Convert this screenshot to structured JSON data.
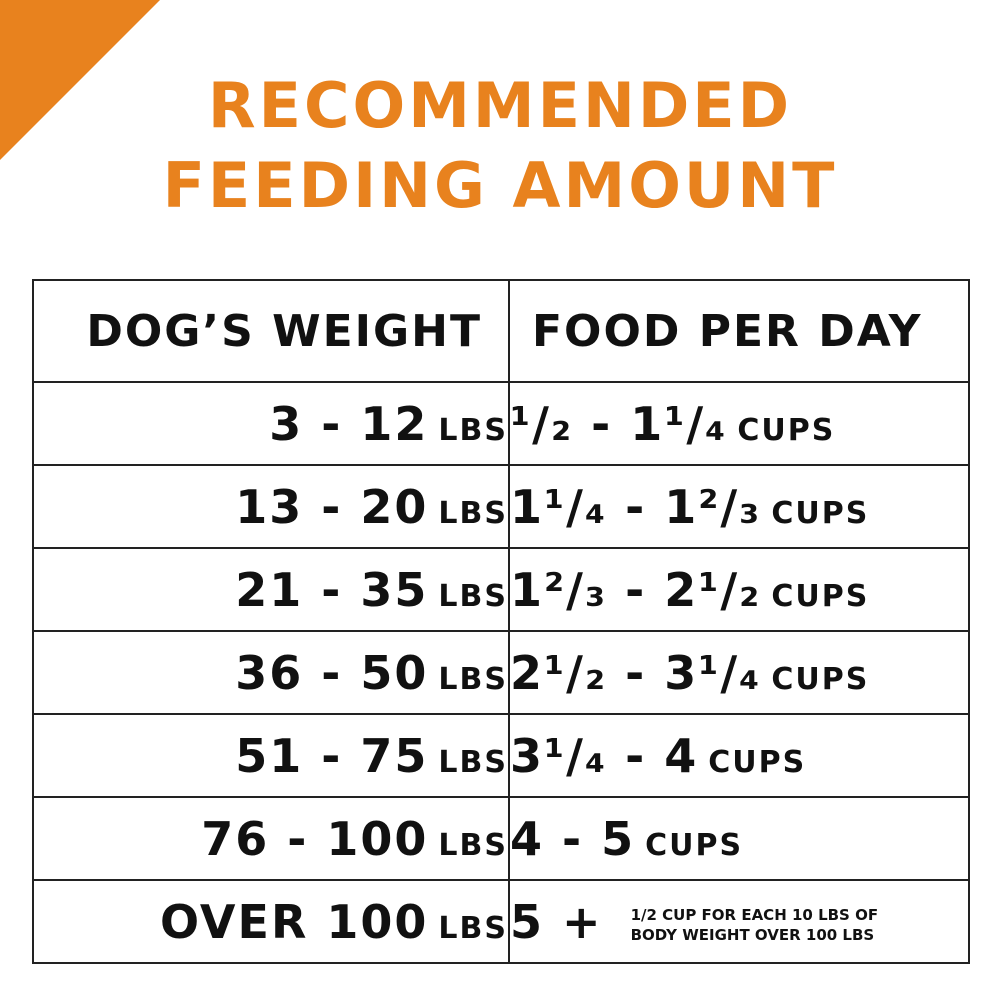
{
  "colors": {
    "accent": "#e8821e",
    "border": "#222222",
    "text": "#111111"
  },
  "title": {
    "line1": "RECOMMENDED",
    "line2": "FEEDING AMOUNT"
  },
  "table": {
    "headers": {
      "weight": "DOG’S WEIGHT",
      "food": "FOOD PER DAY"
    },
    "rows": [
      {
        "weight": "3 - 12",
        "weight_unit": "LBS",
        "food": "¹/₂ - 1¹/₄",
        "food_unit": "CUPS"
      },
      {
        "weight": "13 - 20",
        "weight_unit": "LBS",
        "food": "1¹/₄ - 1²/₃",
        "food_unit": "CUPS"
      },
      {
        "weight": "21 - 35",
        "weight_unit": "LBS",
        "food": "1²/₃ - 2¹/₂",
        "food_unit": "CUPS"
      },
      {
        "weight": "36 - 50",
        "weight_unit": "LBS",
        "food": "2¹/₂ - 3¹/₄",
        "food_unit": "CUPS"
      },
      {
        "weight": "51 - 75",
        "weight_unit": "LBS",
        "food": "3¹/₄ - 4",
        "food_unit": "CUPS"
      },
      {
        "weight": "76 - 100",
        "weight_unit": "LBS",
        "food": "4 - 5",
        "food_unit": "CUPS"
      }
    ],
    "last_row": {
      "weight": "OVER 100",
      "weight_unit": "LBS",
      "food": "5 +",
      "note_line1": "1/2 CUP FOR EACH 10 LBS OF",
      "note_line2": "BODY WEIGHT OVER 100 LBS"
    }
  }
}
